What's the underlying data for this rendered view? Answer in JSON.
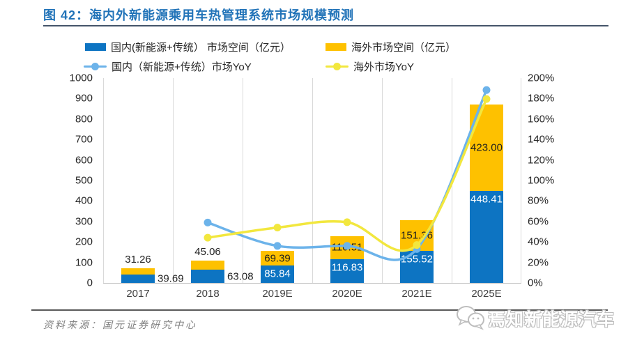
{
  "figure": {
    "title": "图  42：海内外新能源乘用车热管理系统市场规模预测",
    "source": "资料来源：国元证券研究中心",
    "watermark": "焉知新能源汽车"
  },
  "colors": {
    "domestic_bar": "#0d74c2",
    "overseas_bar": "#fec100",
    "domestic_line": "#6cb3ea",
    "overseas_line": "#f2e73e",
    "title_blue": "#2173b8",
    "title_rule": "#44546a",
    "gridline": "#d9d9d9"
  },
  "legend": [
    {
      "label": "国内(新能源+传统） 市场空间（亿元）",
      "type": "bar",
      "color": "#0d74c2"
    },
    {
      "label": "海外市场空间（亿元）",
      "type": "bar",
      "color": "#fec100"
    },
    {
      "label": "国内（新能源+传统）市场YoY",
      "type": "line",
      "color": "#6cb3ea"
    },
    {
      "label": "海外市场YoY",
      "type": "line",
      "color": "#f2e73e"
    }
  ],
  "chart_data": {
    "type": "combo: stacked-bar + smoothed line (dual axis)",
    "title": "海内外新能源乘用车热管理系统市场规模预测",
    "categories": [
      "2017",
      "2018",
      "2019E",
      "2020E",
      "2021E",
      "2025E"
    ],
    "bar_series": [
      {
        "name": "国内(新能源+传统） 市场空间（亿元）",
        "color": "#0d74c2",
        "values": [
          39.69,
          63.08,
          85.84,
          116.83,
          155.52,
          448.41
        ],
        "labels": [
          "39.69",
          "63.08",
          "85.84",
          "116.83",
          "155.52",
          "448.41"
        ]
      },
      {
        "name": "海外市场空间（亿元）",
        "color": "#fec100",
        "values": [
          31.26,
          45.06,
          69.39,
          110.51,
          151.36,
          423.0
        ],
        "labels": [
          "31.26",
          "45.06",
          "69.39",
          "110.51",
          "151.36",
          "423.00"
        ]
      }
    ],
    "line_series": [
      {
        "name": "国内（新能源+传统）市场YoY",
        "color": "#6cb3ea",
        "values_pct": [
          null,
          58.9,
          36.1,
          36.1,
          33.1,
          188.3
        ]
      },
      {
        "name": "海外市场YoY",
        "color": "#f2e73e",
        "values_pct": [
          null,
          44.1,
          54.0,
          59.3,
          37.0,
          179.5
        ]
      }
    ],
    "label_placement": [
      "outside",
      "outside",
      "inside",
      "inside",
      "inside",
      "inside"
    ],
    "left_axis": {
      "min": 0,
      "max": 1000,
      "step": 100,
      "ticks": [
        "0",
        "100",
        "200",
        "300",
        "400",
        "500",
        "600",
        "700",
        "800",
        "900",
        "1000"
      ]
    },
    "right_axis": {
      "min": 0,
      "max": 200,
      "step": 20,
      "ticks": [
        "0%",
        "20%",
        "40%",
        "60%",
        "80%",
        "100%",
        "120%",
        "140%",
        "160%",
        "180%",
        "200%"
      ]
    },
    "grid": "vertical category separators only",
    "legend_position": "top"
  }
}
